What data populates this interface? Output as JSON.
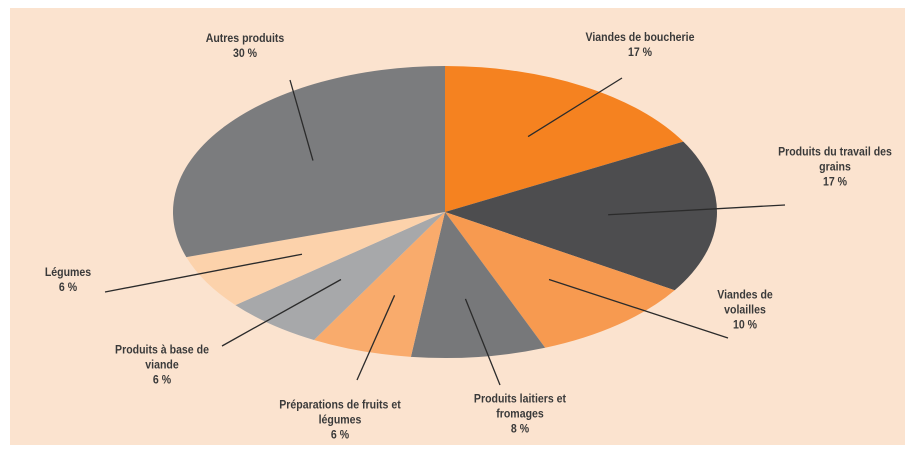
{
  "chart_data": {
    "type": "pie",
    "categories": [
      "Viandes de boucherie",
      "Produits du travail des grains",
      "Viandes de volailles",
      "Produits laitiers et fromages",
      "Préparations de fruits et légumes",
      "Produits à base de viande",
      "Légumes",
      "Autres produits"
    ],
    "values": [
      17,
      17,
      10,
      8,
      6,
      6,
      6,
      30
    ],
    "value_labels": [
      "17 %",
      "17 %",
      "10 %",
      "8 %",
      "6 %",
      "6 %",
      "6 %",
      "30 %"
    ],
    "colors": [
      "#f58220",
      "#4d4d4f",
      "#f79a50",
      "#77787a",
      "#f9ab6c",
      "#a7a8aa",
      "#fcd2ab",
      "#7b7c7e"
    ]
  }
}
